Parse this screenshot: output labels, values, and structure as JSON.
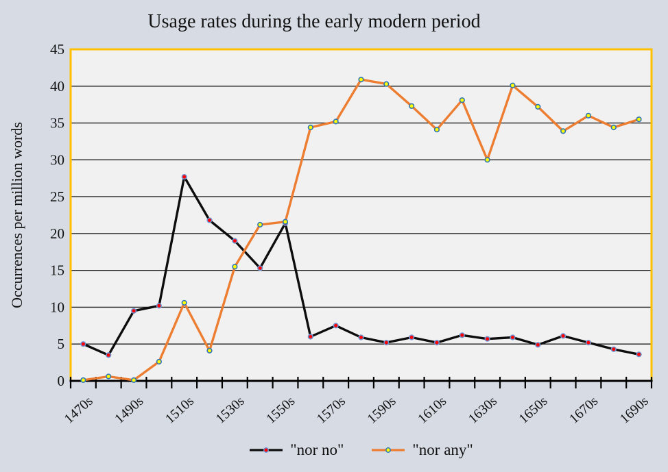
{
  "colors": {
    "background": "#d6dbe4",
    "plot_bg": "#f1f1f1",
    "plot_border": "#ffc000",
    "gridline": "#1c1c1c",
    "axis": "#000000",
    "text": "#111111"
  },
  "chart_data": {
    "type": "line",
    "title": "Usage rates during the early modern period",
    "xlabel": "",
    "ylabel": "Occurrences per million words",
    "ylim": [
      0,
      45
    ],
    "y_ticks": [
      0,
      5,
      10,
      15,
      20,
      25,
      30,
      35,
      40,
      45
    ],
    "grid": "horizontal",
    "legend_position": "bottom",
    "x_label_every": 2,
    "x_label_rotation_deg": -42,
    "categories": [
      "1470s",
      "1480s",
      "1490s",
      "1500s",
      "1510s",
      "1520s",
      "1530s",
      "1540s",
      "1550s",
      "1560s",
      "1570s",
      "1580s",
      "1590s",
      "1600s",
      "1610s",
      "1620s",
      "1630s",
      "1640s",
      "1650s",
      "1660s",
      "1670s",
      "1680s",
      "1690s"
    ],
    "x_tick_labels_shown": [
      "1470s",
      "1490s",
      "1510s",
      "1530s",
      "1550s",
      "1570s",
      "1590s",
      "1610s",
      "1630s",
      "1650s",
      "1670s",
      "1690s"
    ],
    "series": [
      {
        "name": "\"nor no\"",
        "color": "#0d0d0d",
        "marker_fill": "#ff0000",
        "marker_stroke": "#6f93d0",
        "values": [
          5.0,
          3.5,
          9.5,
          10.2,
          27.7,
          21.8,
          19.0,
          15.3,
          21.4,
          6.0,
          7.5,
          5.9,
          5.2,
          5.9,
          5.2,
          6.2,
          5.7,
          5.9,
          4.9,
          6.1,
          5.2,
          4.3,
          3.6
        ]
      },
      {
        "name": "\"nor any\"",
        "color": "#ed7d31",
        "marker_fill": "#ffff00",
        "marker_stroke": "#2e75b6",
        "values": [
          0.1,
          0.6,
          0.1,
          2.6,
          10.6,
          4.1,
          15.5,
          21.2,
          21.6,
          34.4,
          35.2,
          40.9,
          40.3,
          37.3,
          34.1,
          38.1,
          30.0,
          40.1,
          37.2,
          33.9,
          36.0,
          34.4,
          35.5
        ]
      }
    ]
  }
}
